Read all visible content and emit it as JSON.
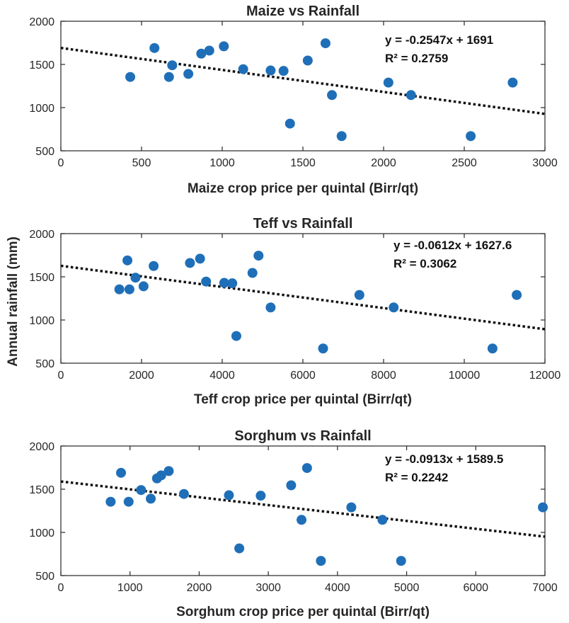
{
  "colors": {
    "marker": "#1f6fb8",
    "trend": "#111111",
    "axis": "#262626"
  },
  "shared_ylabel": "Annual rainfall (mm)",
  "chart_data": [
    {
      "type": "scatter",
      "title": "Maize vs Rainfall",
      "xlabel": "Maize crop price per quintal (Birr/qt)",
      "ylabel": "Annual rainfall (mm)",
      "xlim": [
        0,
        3000
      ],
      "ylim": [
        500,
        2000
      ],
      "xticks": [
        0,
        500,
        1000,
        1500,
        2000,
        2500,
        3000
      ],
      "yticks": [
        500,
        1000,
        1500,
        2000
      ],
      "x": [
        430,
        580,
        670,
        690,
        790,
        870,
        920,
        1010,
        1130,
        1300,
        1380,
        1420,
        1530,
        1640,
        1680,
        1740,
        2030,
        2170,
        2540,
        2800
      ],
      "y": [
        1355,
        1690,
        1355,
        1490,
        1390,
        1625,
        1660,
        1710,
        1445,
        1430,
        1425,
        815,
        1545,
        1745,
        1145,
        670,
        1290,
        1145,
        670,
        1290
      ],
      "trendline": {
        "slope": -0.2547,
        "intercept": 1691
      },
      "equation": "y = -0.2547x + 1691",
      "r2": "R² = 0.2759"
    },
    {
      "type": "scatter",
      "title": "Teff vs Rainfall",
      "xlabel": "Teff crop price per quintal (Birr/qt)",
      "ylabel": "Annual rainfall (mm)",
      "xlim": [
        0,
        12000
      ],
      "ylim": [
        500,
        2000
      ],
      "xticks": [
        0,
        2000,
        4000,
        6000,
        8000,
        10000,
        12000
      ],
      "yticks": [
        500,
        1000,
        1500,
        2000
      ],
      "x": [
        1450,
        1650,
        1700,
        1850,
        2050,
        2300,
        3200,
        3450,
        3600,
        4050,
        4250,
        4350,
        4750,
        4900,
        5200,
        6500,
        7400,
        8250,
        10700,
        11300
      ],
      "y": [
        1355,
        1690,
        1355,
        1490,
        1390,
        1625,
        1660,
        1710,
        1445,
        1430,
        1425,
        815,
        1545,
        1745,
        1145,
        670,
        1290,
        1145,
        670,
        1290
      ],
      "trendline": {
        "slope": -0.0612,
        "intercept": 1627.6
      },
      "equation": "y = -0.0612x + 1627.6",
      "r2": "R² = 0.3062"
    },
    {
      "type": "scatter",
      "title": "Sorghum vs Rainfall",
      "xlabel": "Sorghum crop price per quintal (Birr/qt)",
      "ylabel": "Annual rainfall (mm)",
      "xlim": [
        0,
        7000
      ],
      "ylim": [
        500,
        2000
      ],
      "xticks": [
        0,
        1000,
        2000,
        3000,
        4000,
        5000,
        6000,
        7000
      ],
      "yticks": [
        500,
        1000,
        1500,
        2000
      ],
      "x": [
        720,
        870,
        980,
        1160,
        1300,
        1390,
        1450,
        1560,
        1780,
        2430,
        2580,
        2890,
        3330,
        3480,
        3560,
        3760,
        4200,
        4650,
        4920,
        6970
      ],
      "y": [
        1355,
        1690,
        1355,
        1490,
        1390,
        1625,
        1660,
        1710,
        1445,
        1430,
        815,
        1425,
        1545,
        1145,
        1745,
        670,
        1290,
        1145,
        670,
        1290
      ],
      "trendline": {
        "slope": -0.0913,
        "intercept": 1589.5
      },
      "equation": "y = -0.0913x + 1589.5",
      "r2": "R² = 0.2242"
    }
  ]
}
